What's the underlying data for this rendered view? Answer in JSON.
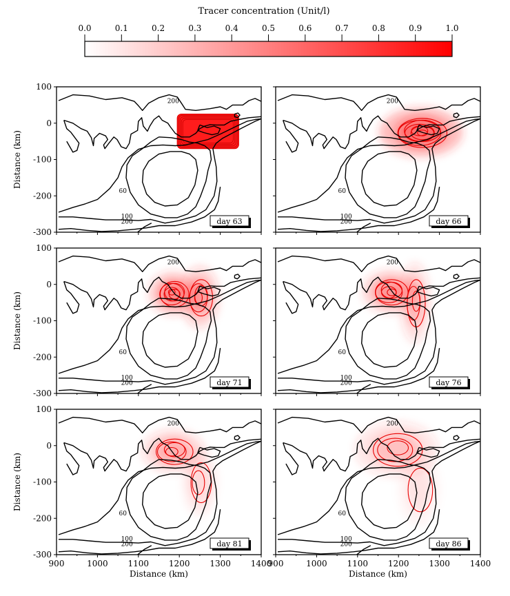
{
  "colorbar": {
    "title": "Tracer concentration (Unit/l)",
    "ticks": [
      "0.0",
      "0.1",
      "0.2",
      "0.3",
      "0.4",
      "0.5",
      "0.6",
      "0.7",
      "0.8",
      "0.9",
      "1.0"
    ],
    "range": [
      0,
      1
    ],
    "color_low": "#ffffff",
    "color_high": "#ff0000"
  },
  "axes": {
    "xlabel": "Distance (km)",
    "ylabel": "Distance (km)",
    "x_ticks": [
      "900",
      "1000",
      "1100",
      "1200",
      "1300",
      "1400"
    ],
    "y_ticks": [
      "100",
      "0",
      "-100",
      "-200",
      "-300"
    ]
  },
  "contour_labels": [
    "200",
    "60",
    "100",
    "200"
  ],
  "chart_data": {
    "type": "heatmap",
    "title": "Tracer concentration (Unit/l)",
    "xlabel": "Distance (km)",
    "ylabel": "Distance (km)",
    "xlim": [
      900,
      1400
    ],
    "ylim": [
      -300,
      100
    ],
    "panels": [
      {
        "label": "day 63",
        "blobs": [
          {
            "x": 1270,
            "y": -20,
            "sx": 55,
            "sy": 32,
            "peak": 1.0,
            "box": true
          }
        ]
      },
      {
        "label": "day 66",
        "blobs": [
          {
            "x": 1255,
            "y": -25,
            "sx": 60,
            "sy": 40,
            "peak": 0.9
          }
        ]
      },
      {
        "label": "day 71",
        "blobs": [
          {
            "x": 1185,
            "y": -25,
            "sx": 35,
            "sy": 35,
            "peak": 0.7
          },
          {
            "x": 1250,
            "y": -35,
            "sx": 28,
            "sy": 50,
            "peak": 0.55
          }
        ]
      },
      {
        "label": "day 76",
        "blobs": [
          {
            "x": 1180,
            "y": -20,
            "sx": 40,
            "sy": 35,
            "peak": 0.6
          },
          {
            "x": 1240,
            "y": -50,
            "sx": 22,
            "sy": 65,
            "peak": 0.4
          }
        ]
      },
      {
        "label": "day 81",
        "blobs": [
          {
            "x": 1185,
            "y": -15,
            "sx": 45,
            "sy": 35,
            "peak": 0.45
          },
          {
            "x": 1250,
            "y": -100,
            "sx": 25,
            "sy": 55,
            "peak": 0.2
          }
        ]
      },
      {
        "label": "day 86",
        "blobs": [
          {
            "x": 1195,
            "y": -10,
            "sx": 60,
            "sy": 45,
            "peak": 0.35
          },
          {
            "x": 1250,
            "y": -120,
            "sx": 30,
            "sy": 60,
            "peak": 0.12
          }
        ]
      }
    ]
  }
}
